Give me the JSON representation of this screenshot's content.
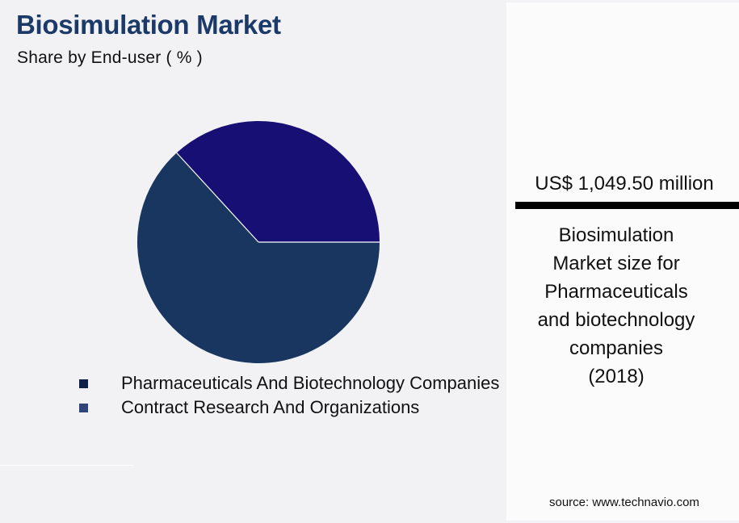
{
  "header": {
    "title": "Biosimulation Market",
    "subtitle": "Share by End-user ( % )"
  },
  "legend": {
    "items": [
      {
        "label": "Pharmaceuticals And Biotechnology Companies",
        "color": "#0f2147"
      },
      {
        "label": "Contract Research And Organizations",
        "color": "#2f4478"
      }
    ]
  },
  "side_panel": {
    "market_value": "US$ 1,049.50 million",
    "description_lines": [
      "Biosimulation",
      "Market size for",
      "Pharmaceuticals",
      "and biotechnology",
      "companies",
      "(2018)"
    ]
  },
  "footer": {
    "source": "source: www.technavio.com"
  },
  "chart_data": {
    "type": "pie",
    "title": "Biosimulation Market",
    "subtitle": "Share by End-user ( % )",
    "categories": [
      "Pharmaceuticals And Biotechnology Companies",
      "Contract Research And Organizations"
    ],
    "values": [
      63.2,
      36.8
    ],
    "colors": [
      "#18365f",
      "#170f73"
    ],
    "legend_position": "bottom",
    "annotations": [
      "US$ 1,049.50 million",
      "Biosimulation Market size for Pharmaceuticals and biotechnology companies (2018)"
    ],
    "start_angle_deg": 0,
    "direction": "counterclockwise for smaller slice from 3 o'clock"
  }
}
